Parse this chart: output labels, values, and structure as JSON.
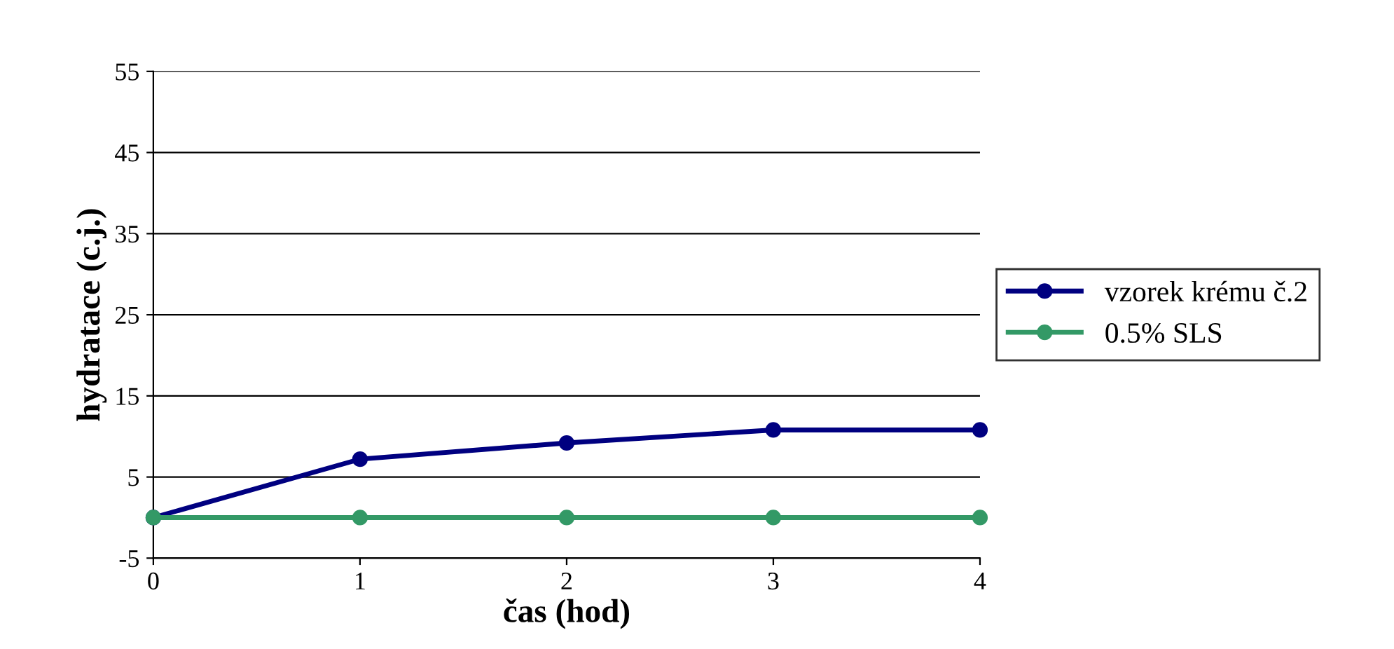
{
  "chart_data": {
    "type": "line",
    "xlabel": "čas (hod)",
    "ylabel": "hydratace (c.j.)",
    "x": [
      0,
      1,
      2,
      3,
      4
    ],
    "series": [
      {
        "name": "vzorek krému č.2",
        "color": "#000080",
        "values": [
          0,
          7.2,
          9.2,
          10.8,
          10.8
        ]
      },
      {
        "name": "0.5% SLS",
        "color": "#339966",
        "values": [
          0,
          0,
          0,
          0,
          0
        ]
      }
    ],
    "xlim": [
      0,
      4
    ],
    "xticks": [
      0,
      1,
      2,
      3,
      4
    ],
    "ylim": [
      -5,
      55
    ],
    "yticks": [
      -5,
      5,
      15,
      25,
      35,
      45,
      55
    ],
    "grid": "y",
    "legend": "right",
    "marker": "circle",
    "line_style": "solid"
  }
}
